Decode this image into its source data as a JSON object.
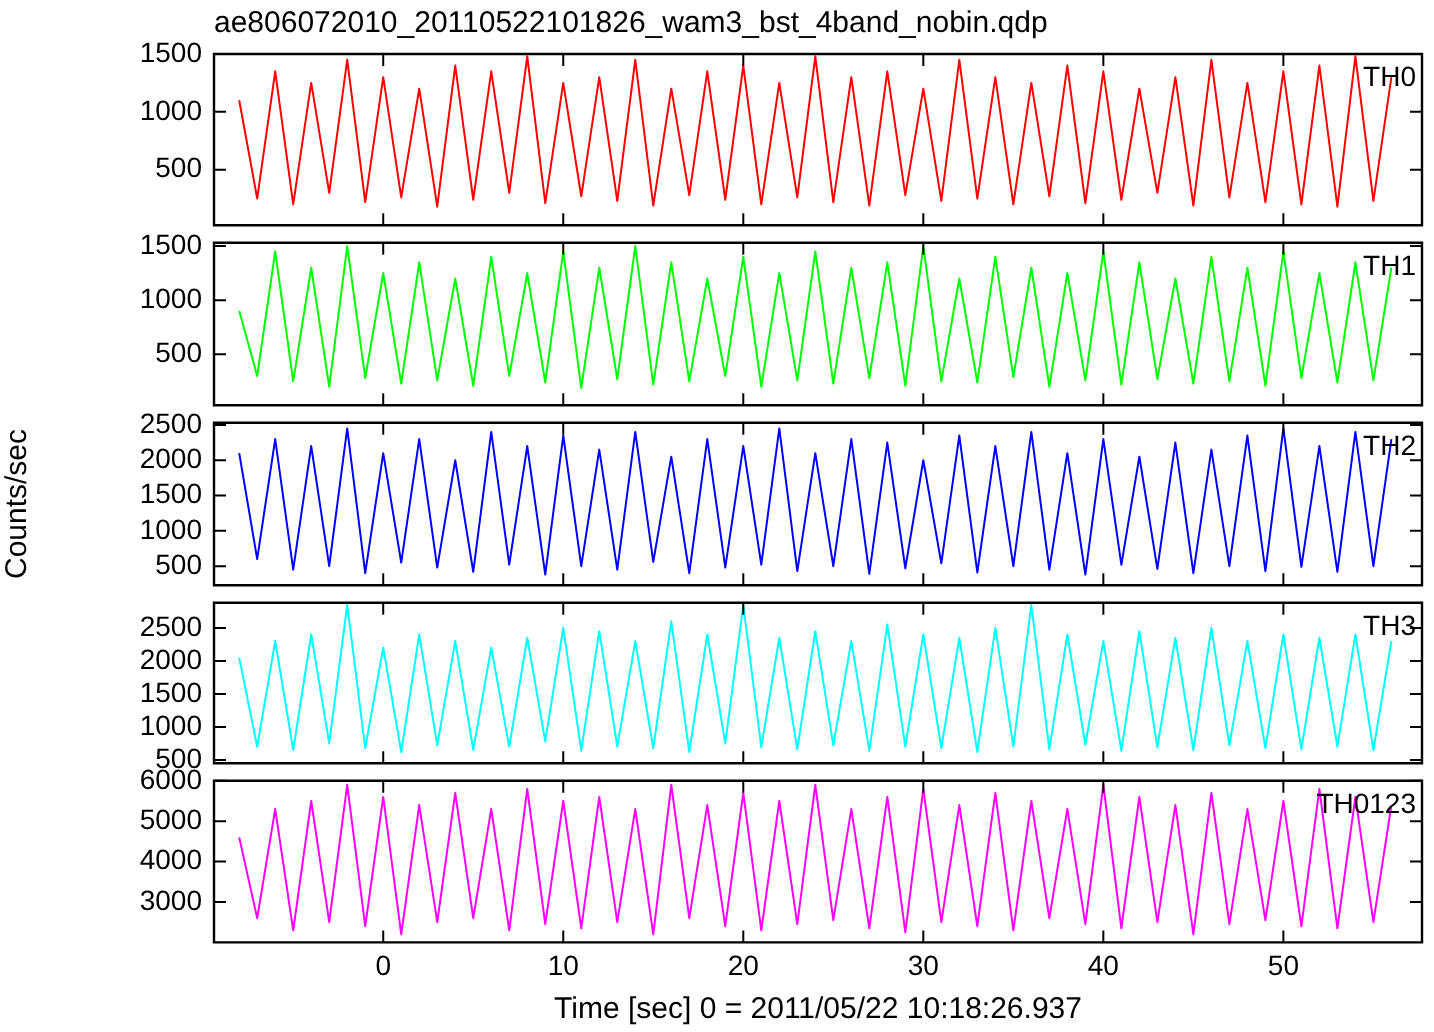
{
  "chart_data": [
    {
      "type": "line",
      "title": "ae806072010_20110522101826_wam3_bst_4band_nobin.qdp",
      "marker": "none",
      "tick_labels": "y",
      "x": [
        -8,
        -7,
        -6,
        -5,
        -4,
        -3,
        -2,
        -1,
        0,
        1,
        2,
        3,
        4,
        5,
        6,
        7,
        8,
        9,
        10,
        11,
        12,
        13,
        14,
        15,
        16,
        17,
        18,
        19,
        20,
        21,
        22,
        23,
        24,
        25,
        26,
        27,
        28,
        29,
        30,
        31,
        32,
        33,
        34,
        35,
        36,
        37,
        38,
        39,
        40,
        41,
        42,
        43,
        44,
        45,
        46,
        47,
        48,
        49,
        50,
        51,
        52,
        53,
        54,
        55,
        56
      ],
      "series": [
        {
          "name": "TH0",
          "color": "#ff0000",
          "values": [
            1100,
            250,
            1350,
            200,
            1250,
            300,
            1450,
            220,
            1300,
            260,
            1200,
            180,
            1400,
            240,
            1350,
            300,
            1480,
            210,
            1250,
            270,
            1300,
            230,
            1450,
            190,
            1200,
            280,
            1350,
            240,
            1400,
            200,
            1250,
            260,
            1480,
            220,
            1300,
            190,
            1350,
            280,
            1200,
            230,
            1450,
            250,
            1300,
            200,
            1250,
            270,
            1400,
            210,
            1350,
            240,
            1200,
            300,
            1300,
            190,
            1450,
            260,
            1250,
            220,
            1350,
            200,
            1400,
            180,
            1480,
            230,
            1300
          ]
        }
      ],
      "xlim": [
        -9.4,
        57.7
      ],
      "xticks": [
        0,
        10,
        20,
        30,
        40,
        50
      ],
      "ylim": [
        20,
        1500
      ],
      "yticks": [
        500,
        1000,
        1500
      ]
    },
    {
      "type": "line",
      "marker": "none",
      "tick_labels": "y",
      "x": [
        -8,
        -7,
        -6,
        -5,
        -4,
        -3,
        -2,
        -1,
        0,
        1,
        2,
        3,
        4,
        5,
        6,
        7,
        8,
        9,
        10,
        11,
        12,
        13,
        14,
        15,
        16,
        17,
        18,
        19,
        20,
        21,
        22,
        23,
        24,
        25,
        26,
        27,
        28,
        29,
        30,
        31,
        32,
        33,
        34,
        35,
        36,
        37,
        38,
        39,
        40,
        41,
        42,
        43,
        44,
        45,
        46,
        47,
        48,
        49,
        50,
        51,
        52,
        53,
        54,
        55,
        56
      ],
      "series": [
        {
          "name": "TH1",
          "color": "#00ff00",
          "values": [
            900,
            300,
            1450,
            250,
            1300,
            200,
            1500,
            280,
            1250,
            230,
            1350,
            260,
            1200,
            210,
            1400,
            300,
            1250,
            240,
            1450,
            190,
            1300,
            270,
            1500,
            220,
            1350,
            250,
            1200,
            300,
            1400,
            200,
            1250,
            260,
            1450,
            230,
            1300,
            280,
            1350,
            210,
            1500,
            250,
            1200,
            240,
            1400,
            290,
            1300,
            200,
            1250,
            260,
            1450,
            220,
            1350,
            270,
            1200,
            230,
            1400,
            250,
            1300,
            210,
            1450,
            280,
            1250,
            240,
            1350,
            260,
            1300
          ]
        }
      ],
      "xlim": [
        -9.4,
        57.7
      ],
      "xticks": [
        0,
        10,
        20,
        30,
        40,
        50
      ],
      "ylim": [
        30,
        1530
      ],
      "yticks": [
        500,
        1000,
        1500
      ]
    },
    {
      "type": "line",
      "marker": "none",
      "tick_labels": "y",
      "ylabel": "Counts/sec",
      "x": [
        -8,
        -7,
        -6,
        -5,
        -4,
        -3,
        -2,
        -1,
        0,
        1,
        2,
        3,
        4,
        5,
        6,
        7,
        8,
        9,
        10,
        11,
        12,
        13,
        14,
        15,
        16,
        17,
        18,
        19,
        20,
        21,
        22,
        23,
        24,
        25,
        26,
        27,
        28,
        29,
        30,
        31,
        32,
        33,
        34,
        35,
        36,
        37,
        38,
        39,
        40,
        41,
        42,
        43,
        44,
        45,
        46,
        47,
        48,
        49,
        50,
        51,
        52,
        53,
        54,
        55,
        56
      ],
      "series": [
        {
          "name": "TH2",
          "color": "#0000ff",
          "values": [
            2100,
            600,
            2300,
            450,
            2200,
            500,
            2450,
            400,
            2100,
            550,
            2300,
            480,
            2000,
            420,
            2400,
            520,
            2200,
            380,
            2350,
            500,
            2150,
            450,
            2400,
            560,
            2050,
            400,
            2300,
            480,
            2200,
            520,
            2450,
            430,
            2100,
            500,
            2300,
            390,
            2250,
            470,
            2000,
            540,
            2350,
            410,
            2200,
            500,
            2400,
            450,
            2100,
            380,
            2300,
            520,
            2050,
            460,
            2250,
            400,
            2150,
            500,
            2350,
            430,
            2450,
            490,
            2200,
            420,
            2400,
            500,
            2300
          ]
        }
      ],
      "xlim": [
        -9.4,
        57.7
      ],
      "xticks": [
        0,
        10,
        20,
        30,
        40,
        50
      ],
      "ylim": [
        230,
        2530
      ],
      "yticks": [
        500,
        1000,
        1500,
        2000,
        2500
      ]
    },
    {
      "type": "line",
      "marker": "none",
      "tick_labels": "y",
      "x": [
        -8,
        -7,
        -6,
        -5,
        -4,
        -3,
        -2,
        -1,
        0,
        1,
        2,
        3,
        4,
        5,
        6,
        7,
        8,
        9,
        10,
        11,
        12,
        13,
        14,
        15,
        16,
        17,
        18,
        19,
        20,
        21,
        22,
        23,
        24,
        25,
        26,
        27,
        28,
        29,
        30,
        31,
        32,
        33,
        34,
        35,
        36,
        37,
        38,
        39,
        40,
        41,
        42,
        43,
        44,
        45,
        46,
        47,
        48,
        49,
        50,
        51,
        52,
        53,
        54,
        55,
        56
      ],
      "series": [
        {
          "name": "TH3",
          "color": "#00ffff",
          "values": [
            2050,
            700,
            2300,
            650,
            2400,
            750,
            2850,
            680,
            2200,
            620,
            2400,
            720,
            2300,
            650,
            2200,
            700,
            2350,
            780,
            2500,
            640,
            2450,
            700,
            2300,
            680,
            2600,
            620,
            2400,
            750,
            2850,
            690,
            2350,
            660,
            2450,
            720,
            2300,
            640,
            2550,
            700,
            2400,
            680,
            2350,
            620,
            2500,
            700,
            2850,
            660,
            2400,
            730,
            2300,
            640,
            2450,
            690,
            2350,
            650,
            2500,
            720,
            2300,
            680,
            2400,
            660,
            2350,
            700,
            2400,
            650,
            2300
          ]
        }
      ],
      "xlim": [
        -9.4,
        57.7
      ],
      "xticks": [
        0,
        10,
        20,
        30,
        40,
        50
      ],
      "ylim": [
        450,
        2880
      ],
      "yticks": [
        500,
        1000,
        1500,
        2000,
        2500
      ]
    },
    {
      "type": "line",
      "marker": "none",
      "xlabel": "Time [sec] 0 = 2011/05/22 10:18:26.937",
      "x": [
        -8,
        -7,
        -6,
        -5,
        -4,
        -3,
        -2,
        -1,
        0,
        1,
        2,
        3,
        4,
        5,
        6,
        7,
        8,
        9,
        10,
        11,
        12,
        13,
        14,
        15,
        16,
        17,
        18,
        19,
        20,
        21,
        22,
        23,
        24,
        25,
        26,
        27,
        28,
        29,
        30,
        31,
        32,
        33,
        34,
        35,
        36,
        37,
        38,
        39,
        40,
        41,
        42,
        43,
        44,
        45,
        46,
        47,
        48,
        49,
        50,
        51,
        52,
        53,
        54,
        55,
        56
      ],
      "series": [
        {
          "name": "TH0123",
          "color": "#ff00ff",
          "values": [
            4600,
            2600,
            5300,
            2300,
            5500,
            2500,
            5900,
            2400,
            5600,
            2200,
            5400,
            2500,
            5700,
            2600,
            5300,
            2300,
            5800,
            2450,
            5500,
            2350,
            5600,
            2500,
            5300,
            2200,
            5900,
            2600,
            5400,
            2400,
            5700,
            2300,
            5500,
            2450,
            5900,
            2550,
            5300,
            2350,
            5600,
            2250,
            5800,
            2500,
            5400,
            2400,
            5700,
            2300,
            5500,
            2600,
            5300,
            2450,
            5900,
            2350,
            5600,
            2500,
            5400,
            2200,
            5700,
            2450,
            5300,
            2550,
            5500,
            2400,
            5800,
            2350,
            5600,
            2500,
            5400
          ]
        }
      ],
      "xlim": [
        -9.4,
        57.7
      ],
      "xticks": [
        0,
        10,
        20,
        30,
        40,
        50
      ],
      "ylim": [
        2000,
        6000
      ],
      "yticks": [
        3000,
        4000,
        5000,
        6000
      ]
    }
  ]
}
